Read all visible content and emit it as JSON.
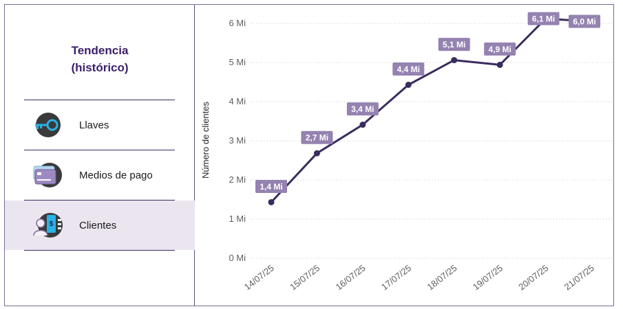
{
  "sidebar": {
    "title_line1": "Tendencia",
    "title_line2": "(histórico)",
    "items": [
      {
        "label": "Llaves",
        "icon": "key-icon",
        "active": false
      },
      {
        "label": "Medios de pago",
        "icon": "payment-cards-icon",
        "active": false
      },
      {
        "label": "Clientes",
        "icon": "clients-icon",
        "active": true
      }
    ]
  },
  "colors": {
    "accent": "#3b1f6b",
    "line": "#3a2c5e",
    "label_bg": "#9482b0",
    "active_bg": "#ebe5f0",
    "icon_blue": "#2ab3e6"
  },
  "chart_data": {
    "type": "line",
    "title": "",
    "xlabel": "",
    "ylabel": "Número de clientes",
    "categories": [
      "14/07/25",
      "15/07/25",
      "16/07/25",
      "17/07/25",
      "18/07/25",
      "19/07/25",
      "20/07/25",
      "21/07/25"
    ],
    "values": [
      1.43,
      2.68,
      3.41,
      4.43,
      5.06,
      4.94,
      6.12,
      6.05
    ],
    "data_labels": [
      "1,4 Mi",
      "2,7 Mi",
      "3,4 Mi",
      "4,4 Mi",
      "5,1 Mi",
      "4,9 Mi",
      "6,1 Mi",
      "6,0 Mi"
    ],
    "y_ticks": [
      0,
      1,
      2,
      3,
      4,
      5,
      6
    ],
    "y_tick_labels": [
      "0 Mi",
      "1 Mi",
      "2 Mi",
      "3 Mi",
      "4 Mi",
      "5 Mi",
      "6 Mi"
    ],
    "ylim": [
      0,
      6
    ],
    "grid": true
  }
}
